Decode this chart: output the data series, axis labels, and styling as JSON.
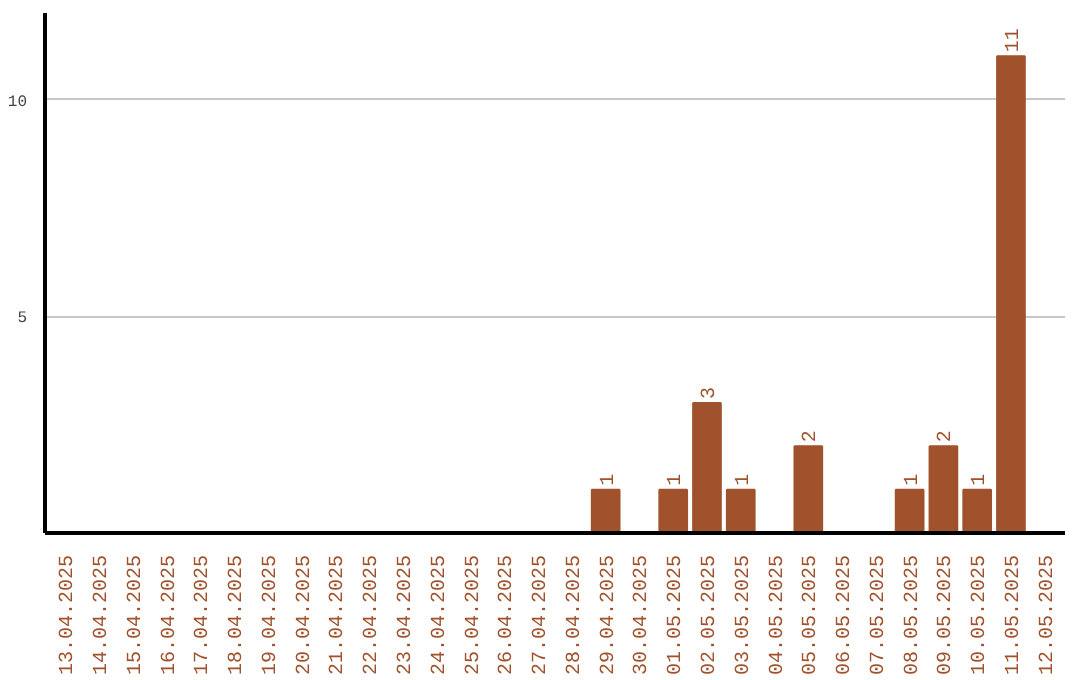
{
  "chart_data": {
    "type": "bar",
    "categories": [
      "13.04.2025",
      "14.04.2025",
      "15.04.2025",
      "16.04.2025",
      "17.04.2025",
      "18.04.2025",
      "19.04.2025",
      "20.04.2025",
      "21.04.2025",
      "22.04.2025",
      "23.04.2025",
      "24.04.2025",
      "25.04.2025",
      "26.04.2025",
      "27.04.2025",
      "28.04.2025",
      "29.04.2025",
      "30.04.2025",
      "01.05.2025",
      "02.05.2025",
      "03.05.2025",
      "04.05.2025",
      "05.05.2025",
      "06.05.2025",
      "07.05.2025",
      "08.05.2025",
      "09.05.2025",
      "10.05.2025",
      "11.05.2025",
      "12.05.2025"
    ],
    "values": [
      0,
      0,
      0,
      0,
      0,
      0,
      0,
      0,
      0,
      0,
      0,
      0,
      0,
      0,
      0,
      0,
      1,
      0,
      1,
      3,
      1,
      0,
      2,
      0,
      0,
      1,
      2,
      1,
      11,
      0
    ],
    "color": "#a0522d",
    "value_labels": [
      null,
      null,
      null,
      null,
      null,
      null,
      null,
      null,
      null,
      null,
      null,
      null,
      null,
      null,
      null,
      null,
      "1",
      null,
      "1",
      "3",
      "1",
      null,
      "2",
      null,
      null,
      "1",
      "2",
      "1",
      "11",
      null
    ],
    "ylim": [
      0,
      12
    ],
    "yticks": [
      5,
      10
    ],
    "grid": "y"
  }
}
